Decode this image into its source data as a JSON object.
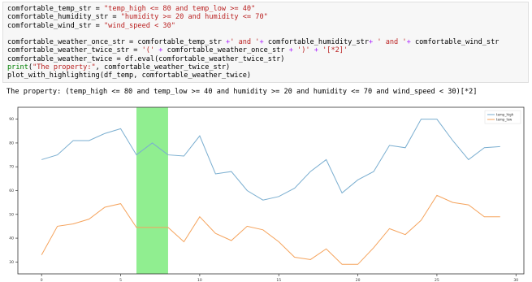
{
  "code_cell": {
    "lines": [
      [
        {
          "t": "comfortable_temp_str = ",
          "c": "plain"
        },
        {
          "t": "\"temp_high <= 80 and temp_low >= 40\"",
          "c": "str"
        }
      ],
      [
        {
          "t": "comfortable_humidity_str = ",
          "c": "plain"
        },
        {
          "t": "\"humidity >= 20 and humidity <= 70\"",
          "c": "str"
        }
      ],
      [
        {
          "t": "comfortable_wind_str = ",
          "c": "plain"
        },
        {
          "t": "\"wind_speed < 30\"",
          "c": "str"
        }
      ],
      [],
      [
        {
          "t": "comfortable_weather_once_str = comfortable_temp_str ",
          "c": "plain"
        },
        {
          "t": "+",
          "c": "op"
        },
        {
          "t": "' and '",
          "c": "str"
        },
        {
          "t": "+",
          "c": "op"
        },
        {
          "t": " comfortable_humidity_str",
          "c": "plain"
        },
        {
          "t": "+",
          "c": "op"
        },
        {
          "t": " ' and '",
          "c": "str"
        },
        {
          "t": "+",
          "c": "op"
        },
        {
          "t": " comfortable_wind_str",
          "c": "plain"
        }
      ],
      [
        {
          "t": "comfortable_weather_twice_str = ",
          "c": "plain"
        },
        {
          "t": "'('",
          "c": "str"
        },
        {
          "t": " + ",
          "c": "op"
        },
        {
          "t": "comfortable_weather_once_str ",
          "c": "plain"
        },
        {
          "t": "+",
          "c": "op"
        },
        {
          "t": " ')'",
          "c": "str"
        },
        {
          "t": " + ",
          "c": "op"
        },
        {
          "t": "'[*2]'",
          "c": "str"
        }
      ],
      [
        {
          "t": "comfortable_weather_twice = df.eval(comfortable_weather_twice_str)",
          "c": "plain"
        }
      ],
      [
        {
          "t": "print",
          "c": "kw"
        },
        {
          "t": "(",
          "c": "plain"
        },
        {
          "t": "\"The property:\"",
          "c": "str"
        },
        {
          "t": ", comfortable_weather_twice_str)",
          "c": "plain"
        }
      ],
      [
        {
          "t": "plot_with_highlighting(df_temp, comfortable_weather_twice)",
          "c": "plain"
        }
      ]
    ]
  },
  "output_text": "The property: (temp_high <= 80 and temp_low >= 40 and humidity >= 20 and humidity <= 70 and wind_speed < 30)[*2]",
  "chart_data": {
    "type": "line",
    "x": [
      0,
      1,
      2,
      3,
      4,
      5,
      6,
      7,
      8,
      9,
      10,
      11,
      12,
      13,
      14,
      15,
      16,
      17,
      18,
      19,
      20,
      21,
      22,
      23,
      24,
      25,
      26,
      27,
      28,
      29
    ],
    "series": [
      {
        "name": "temp_high",
        "color": "#7aaed0",
        "values": [
          73,
          75,
          81,
          81,
          84,
          86,
          75,
          80,
          75,
          74.5,
          83,
          67,
          68,
          60,
          56,
          57.5,
          61,
          68,
          73,
          59,
          64.5,
          68,
          79,
          78,
          90,
          90,
          81,
          73,
          78,
          78.5
        ]
      },
      {
        "name": "temp_low",
        "color": "#f5a35c",
        "values": [
          33,
          45,
          46,
          48,
          53,
          54.5,
          44.5,
          44.5,
          44.5,
          38.5,
          49,
          42,
          39,
          45,
          43.5,
          38.5,
          32,
          31,
          35.5,
          29,
          29,
          36,
          44,
          41.5,
          47.5,
          58,
          55,
          54,
          49,
          49
        ]
      }
    ],
    "highlight": {
      "x_start": 6,
      "x_end": 8,
      "color": "#90ee90"
    },
    "xlim": [
      -1.5,
      30.5
    ],
    "ylim": [
      25,
      95
    ],
    "xticks": [
      0,
      5,
      10,
      15,
      20,
      25,
      30
    ],
    "yticks": [
      30,
      40,
      50,
      60,
      70,
      80,
      90
    ],
    "legend_position": "top-right",
    "grid": false
  }
}
